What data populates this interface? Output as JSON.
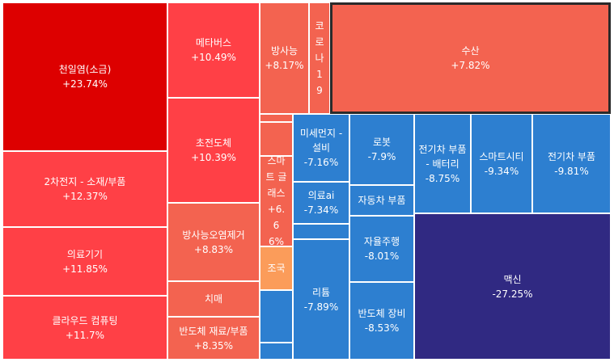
{
  "treemap": {
    "colors": {
      "strong_red": "#DD0000",
      "red": "#FF4046",
      "salmon": "#F36350",
      "peach": "#FB9C5A",
      "blue": "#2D7FD0",
      "navy": "#302982"
    },
    "tiles": [
      {
        "name": "천일염(소금)",
        "change": "+23.74%"
      },
      {
        "name": "2차전지 - 소재/부품",
        "change": "+12.37%"
      },
      {
        "name": "의료기기",
        "change": "+11.85%"
      },
      {
        "name": "클라우드 컴퓨팅",
        "change": "+11.7%"
      },
      {
        "name": "메타버스",
        "change": "+10.49%"
      },
      {
        "name": "초전도체",
        "change": "+10.39%"
      },
      {
        "name": "방사능오염제거",
        "change": "+8.83%"
      },
      {
        "name": "치매",
        "change": ""
      },
      {
        "name": "반도체 재료/부품",
        "change": "+8.35%"
      },
      {
        "name": "방사능",
        "change": "+8.17%"
      },
      {
        "name": "코로나19",
        "change": ""
      },
      {
        "name": "수산",
        "change": "+7.82%"
      },
      {
        "name": "스마트 글래스",
        "change": "+6.66%"
      },
      {
        "name": "조국",
        "change": ""
      },
      {
        "name": "미세먼지 - 설비",
        "change": "-7.16%"
      },
      {
        "name": "의료ai",
        "change": "-7.34%"
      },
      {
        "name": "리튬",
        "change": "-7.89%"
      },
      {
        "name": "로봇",
        "change": "-7.9%"
      },
      {
        "name": "자동차 부품",
        "change": ""
      },
      {
        "name": "자율주행",
        "change": "-8.01%"
      },
      {
        "name": "반도체 장비",
        "change": "-8.53%"
      },
      {
        "name": "전기차 부품 - 배터리",
        "change": "-8.75%"
      },
      {
        "name": "스마트시티",
        "change": "-9.34%"
      },
      {
        "name": "전기차 부품",
        "change": "-9.81%"
      },
      {
        "name": "맥신",
        "change": "-27.25%"
      }
    ]
  }
}
